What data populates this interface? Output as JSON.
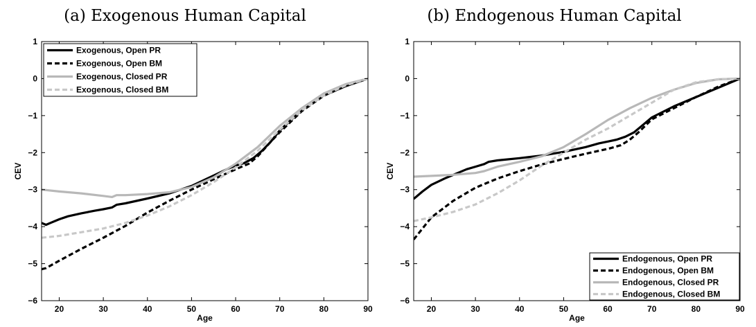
{
  "chart_data": [
    {
      "type": "line",
      "title": "(a) Exogenous Human Capital",
      "xlabel": "Age",
      "ylabel": "CEV",
      "xlim": [
        16,
        90
      ],
      "ylim": [
        -6,
        1
      ],
      "xticks": [
        20,
        30,
        40,
        50,
        60,
        70,
        80,
        90
      ],
      "yticks": [
        -6,
        -5,
        -4,
        -3,
        -2,
        -1,
        0,
        1
      ],
      "grid": false,
      "legend_position": "top-left",
      "series": [
        {
          "name": "Exogenous, Open PR",
          "color": "#000000",
          "dash": "solid",
          "points": [
            [
              16,
              -3.9
            ],
            [
              17,
              -3.95
            ],
            [
              18,
              -3.9
            ],
            [
              20,
              -3.8
            ],
            [
              22,
              -3.72
            ],
            [
              25,
              -3.64
            ],
            [
              28,
              -3.57
            ],
            [
              30,
              -3.53
            ],
            [
              32,
              -3.48
            ],
            [
              33,
              -3.41
            ],
            [
              35,
              -3.37
            ],
            [
              40,
              -3.24
            ],
            [
              45,
              -3.1
            ],
            [
              50,
              -2.9
            ],
            [
              55,
              -2.62
            ],
            [
              58,
              -2.45
            ],
            [
              60,
              -2.35
            ],
            [
              62,
              -2.28
            ],
            [
              64,
              -2.15
            ],
            [
              66,
              -1.95
            ],
            [
              68,
              -1.7
            ],
            [
              70,
              -1.4
            ],
            [
              75,
              -0.85
            ],
            [
              80,
              -0.45
            ],
            [
              85,
              -0.2
            ],
            [
              90,
              0
            ]
          ]
        },
        {
          "name": "Exogenous, Open BM",
          "color": "#000000",
          "dash": "dashed",
          "points": [
            [
              16,
              -5.15
            ],
            [
              17,
              -5.12
            ],
            [
              20,
              -4.92
            ],
            [
              25,
              -4.6
            ],
            [
              30,
              -4.3
            ],
            [
              35,
              -3.98
            ],
            [
              40,
              -3.62
            ],
            [
              45,
              -3.3
            ],
            [
              50,
              -3.0
            ],
            [
              55,
              -2.72
            ],
            [
              60,
              -2.45
            ],
            [
              63,
              -2.3
            ],
            [
              65,
              -2.1
            ],
            [
              68,
              -1.7
            ],
            [
              70,
              -1.45
            ],
            [
              75,
              -0.88
            ],
            [
              80,
              -0.46
            ],
            [
              85,
              -0.2
            ],
            [
              90,
              0
            ]
          ]
        },
        {
          "name": "Exogenous, Closed PR",
          "color": "#b8b8b8",
          "dash": "solid",
          "points": [
            [
              16,
              -3.0
            ],
            [
              20,
              -3.05
            ],
            [
              25,
              -3.1
            ],
            [
              30,
              -3.17
            ],
            [
              32,
              -3.2
            ],
            [
              33,
              -3.15
            ],
            [
              35,
              -3.15
            ],
            [
              40,
              -3.12
            ],
            [
              45,
              -3.07
            ],
            [
              50,
              -2.93
            ],
            [
              55,
              -2.67
            ],
            [
              60,
              -2.3
            ],
            [
              65,
              -1.85
            ],
            [
              70,
              -1.28
            ],
            [
              75,
              -0.8
            ],
            [
              80,
              -0.4
            ],
            [
              85,
              -0.15
            ],
            [
              90,
              0
            ]
          ]
        },
        {
          "name": "Exogenous, Closed BM",
          "color": "#c8c8c8",
          "dash": "dashed",
          "points": [
            [
              16,
              -4.3
            ],
            [
              20,
              -4.25
            ],
            [
              25,
              -4.15
            ],
            [
              30,
              -4.05
            ],
            [
              35,
              -3.9
            ],
            [
              40,
              -3.7
            ],
            [
              45,
              -3.45
            ],
            [
              50,
              -3.15
            ],
            [
              55,
              -2.8
            ],
            [
              60,
              -2.4
            ],
            [
              65,
              -1.95
            ],
            [
              70,
              -1.38
            ],
            [
              75,
              -0.85
            ],
            [
              80,
              -0.45
            ],
            [
              85,
              -0.18
            ],
            [
              90,
              0
            ]
          ]
        }
      ],
      "legend": [
        "Exogenous, Open PR",
        "Exogenous, Open BM",
        "Exogenous, Closed PR",
        "Exogenous, Closed BM"
      ]
    },
    {
      "type": "line",
      "title": "(b) Endogenous Human Capital",
      "xlabel": "Age",
      "ylabel": "CEV",
      "xlim": [
        16,
        90
      ],
      "ylim": [
        -6,
        1
      ],
      "xticks": [
        20,
        30,
        40,
        50,
        60,
        70,
        80,
        90
      ],
      "yticks": [
        -6,
        -5,
        -4,
        -3,
        -2,
        -1,
        0,
        1
      ],
      "grid": false,
      "legend_position": "bottom-right",
      "series": [
        {
          "name": "Endogenous, Open PR",
          "color": "#000000",
          "dash": "solid",
          "points": [
            [
              16,
              -3.25
            ],
            [
              18,
              -3.05
            ],
            [
              20,
              -2.87
            ],
            [
              23,
              -2.7
            ],
            [
              25,
              -2.6
            ],
            [
              28,
              -2.45
            ],
            [
              30,
              -2.38
            ],
            [
              32,
              -2.31
            ],
            [
              33,
              -2.25
            ],
            [
              35,
              -2.21
            ],
            [
              40,
              -2.15
            ],
            [
              45,
              -2.08
            ],
            [
              50,
              -1.98
            ],
            [
              55,
              -1.85
            ],
            [
              58,
              -1.75
            ],
            [
              60,
              -1.7
            ],
            [
              62,
              -1.65
            ],
            [
              64,
              -1.57
            ],
            [
              66,
              -1.45
            ],
            [
              68,
              -1.25
            ],
            [
              70,
              -1.05
            ],
            [
              75,
              -0.75
            ],
            [
              80,
              -0.5
            ],
            [
              85,
              -0.25
            ],
            [
              90,
              0
            ]
          ]
        },
        {
          "name": "Endogenous, Open BM",
          "color": "#000000",
          "dash": "dashed",
          "points": [
            [
              16,
              -4.35
            ],
            [
              18,
              -4.05
            ],
            [
              20,
              -3.75
            ],
            [
              25,
              -3.3
            ],
            [
              30,
              -2.95
            ],
            [
              35,
              -2.7
            ],
            [
              40,
              -2.5
            ],
            [
              45,
              -2.32
            ],
            [
              50,
              -2.17
            ],
            [
              55,
              -2.03
            ],
            [
              60,
              -1.9
            ],
            [
              63,
              -1.8
            ],
            [
              65,
              -1.65
            ],
            [
              67,
              -1.45
            ],
            [
              70,
              -1.1
            ],
            [
              75,
              -0.8
            ],
            [
              80,
              -0.5
            ],
            [
              85,
              -0.22
            ],
            [
              90,
              0
            ]
          ]
        },
        {
          "name": "Endogenous, Closed PR",
          "color": "#b8b8b8",
          "dash": "solid",
          "points": [
            [
              16,
              -2.65
            ],
            [
              20,
              -2.63
            ],
            [
              25,
              -2.6
            ],
            [
              30,
              -2.55
            ],
            [
              32,
              -2.5
            ],
            [
              35,
              -2.38
            ],
            [
              40,
              -2.25
            ],
            [
              45,
              -2.1
            ],
            [
              50,
              -1.85
            ],
            [
              55,
              -1.5
            ],
            [
              60,
              -1.12
            ],
            [
              65,
              -0.8
            ],
            [
              70,
              -0.52
            ],
            [
              75,
              -0.3
            ],
            [
              80,
              -0.12
            ],
            [
              85,
              -0.02
            ],
            [
              90,
              0
            ]
          ]
        },
        {
          "name": "Endogenous, Closed BM",
          "color": "#c8c8c8",
          "dash": "dashed",
          "points": [
            [
              16,
              -3.85
            ],
            [
              20,
              -3.75
            ],
            [
              25,
              -3.6
            ],
            [
              30,
              -3.4
            ],
            [
              35,
              -3.1
            ],
            [
              40,
              -2.75
            ],
            [
              45,
              -2.35
            ],
            [
              50,
              -2.0
            ],
            [
              55,
              -1.65
            ],
            [
              60,
              -1.35
            ],
            [
              65,
              -1.0
            ],
            [
              70,
              -0.65
            ],
            [
              75,
              -0.3
            ],
            [
              80,
              -0.1
            ],
            [
              85,
              -0.02
            ],
            [
              90,
              0
            ]
          ]
        }
      ],
      "legend": [
        "Endogenous, Open PR",
        "Endogenous, Open BM",
        "Endogenous, Closed PR",
        "Endogenous, Closed BM"
      ]
    }
  ]
}
